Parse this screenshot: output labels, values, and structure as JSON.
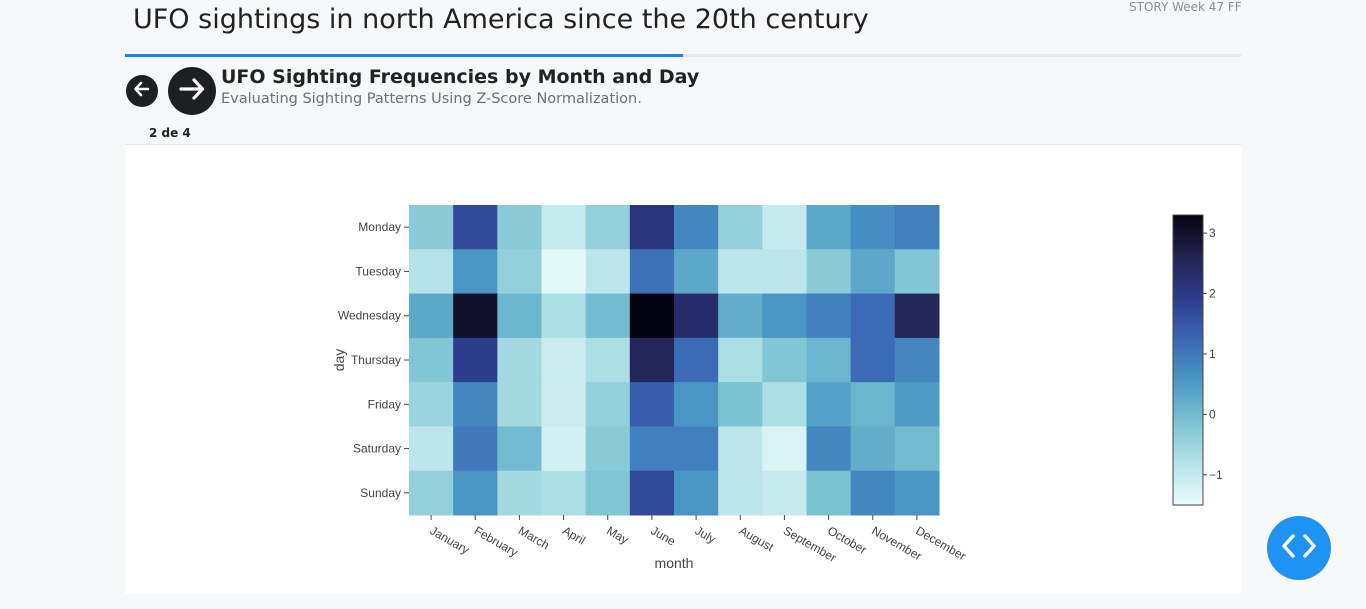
{
  "story": {
    "title": "UFO sightings in north America since the 20th century",
    "tag": "STORY Week 47 FF",
    "progress": 0.5
  },
  "slide": {
    "title": "UFO Sighting Frequencies by Month and Day",
    "subtitle": "Evaluating Sighting Patterns Using Z-Score Normalization.",
    "counter": "2 de 4"
  },
  "icons": {
    "prev": "arrow-left-icon",
    "next": "arrow-right-icon",
    "embed": "code-icon"
  },
  "colors": {
    "progress": "#1f84e0",
    "nav": "#1d1f23",
    "fab": "#1e93f3"
  },
  "chart_data": {
    "type": "heatmap",
    "xlabel": "month",
    "ylabel": "day",
    "x": [
      "January",
      "February",
      "March",
      "April",
      "May",
      "June",
      "July",
      "August",
      "September",
      "October",
      "November",
      "December"
    ],
    "y": [
      "Monday",
      "Tuesday",
      "Wednesday",
      "Thursday",
      "Friday",
      "Saturday",
      "Sunday"
    ],
    "z": [
      [
        -0.3,
        1.7,
        -0.3,
        -1.0,
        -0.4,
        2.1,
        0.8,
        -0.4,
        -1.0,
        0.3,
        0.7,
        0.9
      ],
      [
        -0.8,
        0.6,
        -0.4,
        -1.4,
        -0.9,
        1.1,
        0.3,
        -0.9,
        -0.9,
        -0.3,
        0.3,
        -0.2
      ],
      [
        0.3,
        3.0,
        0.1,
        -0.7,
        0.0,
        3.3,
        2.3,
        0.2,
        0.6,
        0.9,
        1.2,
        2.5
      ],
      [
        -0.2,
        1.9,
        -0.6,
        -1.1,
        -0.7,
        2.5,
        1.2,
        -0.7,
        -0.2,
        0.1,
        1.2,
        0.8
      ],
      [
        -0.5,
        0.8,
        -0.6,
        -1.1,
        -0.4,
        1.4,
        0.6,
        -0.1,
        -0.7,
        0.4,
        0.1,
        0.5
      ],
      [
        -0.9,
        1.0,
        0.0,
        -1.2,
        -0.3,
        0.9,
        0.9,
        -0.9,
        -1.3,
        0.8,
        0.2,
        0.0
      ],
      [
        -0.4,
        0.6,
        -0.6,
        -0.7,
        -0.2,
        1.7,
        0.6,
        -0.9,
        -1.0,
        -0.1,
        0.8,
        0.6
      ]
    ],
    "zrange": [
      -1.5,
      3.3
    ],
    "colorbar_ticks": [
      3,
      2,
      1,
      0,
      -1
    ],
    "colorbar_tick_labels": [
      "3",
      "2",
      "1",
      "0",
      "−1"
    ],
    "colorscale": [
      "#e9fbfc",
      "#b6e3e8",
      "#7cc3d3",
      "#4a98c5",
      "#3a67b5",
      "#2c3b8c",
      "#232250",
      "#030310"
    ]
  }
}
